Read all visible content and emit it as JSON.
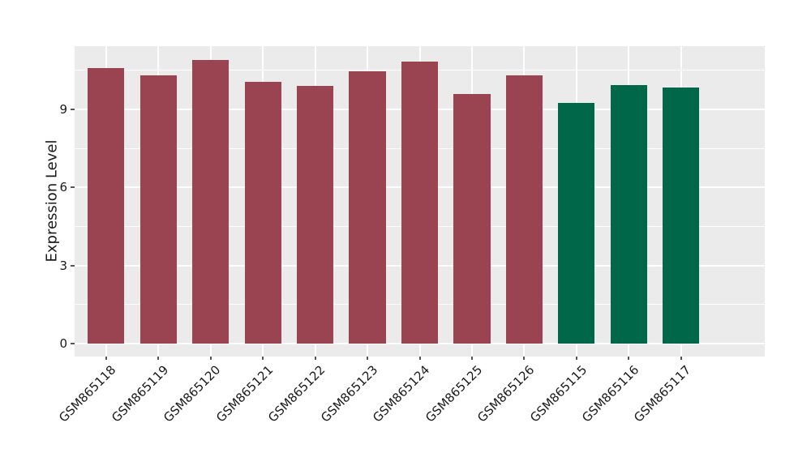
{
  "figure": {
    "background_color": "#FFFFFF"
  },
  "chart_data": {
    "type": "bar",
    "title": "",
    "xlabel": "",
    "ylabel": "Expression Level",
    "categories": [
      "GSM865118",
      "GSM865119",
      "GSM865120",
      "GSM865121",
      "GSM865122",
      "GSM865123",
      "GSM865124",
      "GSM865125",
      "GSM865126",
      "GSM865115",
      "GSM865116",
      "GSM865117"
    ],
    "values": [
      10.6,
      10.3,
      10.9,
      10.05,
      9.9,
      10.45,
      10.85,
      9.6,
      10.3,
      9.25,
      9.95,
      9.85
    ],
    "bar_colors": [
      "#9A4452",
      "#9A4452",
      "#9A4452",
      "#9A4452",
      "#9A4452",
      "#9A4452",
      "#9A4452",
      "#9A4452",
      "#9A4452",
      "#006849",
      "#006849",
      "#006849"
    ],
    "group_colors": {
      "maroon_group": "#9A4452",
      "green_group": "#006849"
    },
    "yticks": [
      0,
      3,
      6,
      9
    ],
    "yticks_minor": [
      1.5,
      4.5,
      7.5,
      10.5
    ],
    "ylim": [
      -0.5,
      11.43
    ],
    "bar_width_fraction": 0.7,
    "x_tick_rotation_deg": 45,
    "grid": "on",
    "legend": "none",
    "panel_bg": "#EBEBEB",
    "grid_color": "#FFFFFF",
    "tick_color": "#555555"
  }
}
